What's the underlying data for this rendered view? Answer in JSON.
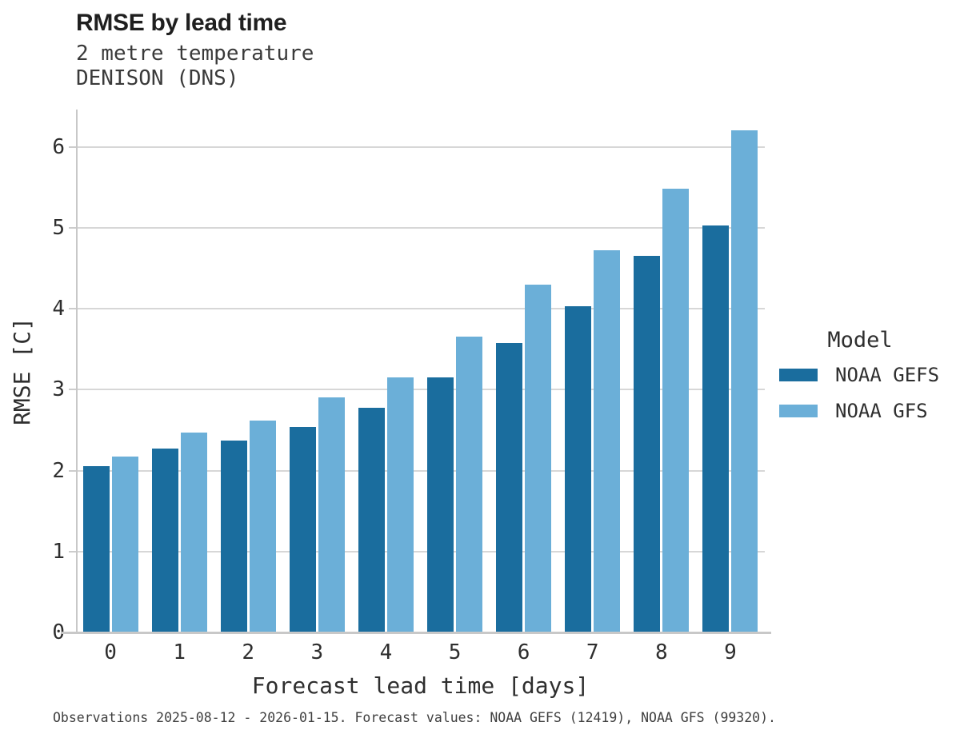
{
  "header": {
    "title": "RMSE by lead time",
    "subtitle_line1": "2 metre temperature",
    "subtitle_line2": "DENISON (DNS)"
  },
  "chart_data": {
    "type": "bar",
    "title": "RMSE by lead time",
    "subtitle": [
      "2 metre temperature",
      "DENISON (DNS)"
    ],
    "categories": [
      "0",
      "1",
      "2",
      "3",
      "4",
      "5",
      "6",
      "7",
      "8",
      "9"
    ],
    "series": [
      {
        "name": "NOAA GEFS",
        "color": "#1a6d9e",
        "values": [
          2.05,
          2.27,
          2.37,
          2.54,
          2.78,
          3.15,
          3.58,
          4.03,
          4.65,
          5.03
        ]
      },
      {
        "name": "NOAA GFS",
        "color": "#6bafd8",
        "values": [
          2.17,
          2.47,
          2.62,
          2.9,
          3.15,
          3.65,
          4.3,
          4.72,
          5.48,
          6.2
        ]
      }
    ],
    "xlabel": "Forecast lead time [days]",
    "ylabel": "RMSE [C]",
    "ylim": [
      0,
      6.46
    ],
    "yticks": [
      0,
      1,
      2,
      3,
      4,
      5,
      6
    ],
    "grid": "horizontal",
    "legend_title": "Model",
    "legend_position": "right"
  },
  "legend": {
    "title": "Model",
    "items": [
      "NOAA GEFS",
      "NOAA GFS"
    ]
  },
  "footer": {
    "note": "Observations 2025-08-12 - 2026-01-15. Forecast values: NOAA GEFS (12419), NOAA GFS (99320)."
  },
  "colors": {
    "gefs_bar": "#1a6d9e",
    "gfs_bar": "#6bafd8",
    "gridline": "#d7d7d7",
    "axis": "#c8c8c8",
    "text": "#2e2e2e"
  }
}
